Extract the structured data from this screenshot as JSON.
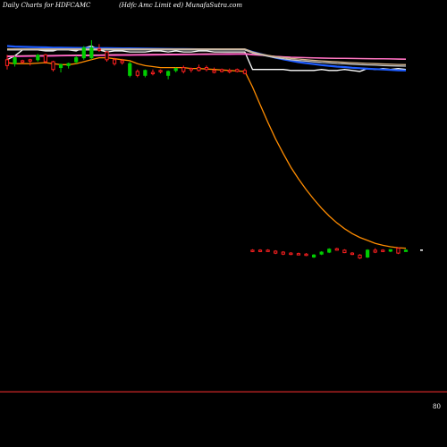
{
  "header": {
    "left": "Daily Charts for HDFCAMC",
    "right": "(Hdfc Amc Limit                         ed) MunafaSutra.com"
  },
  "colors": {
    "background": "#000000",
    "up": "#00cc00",
    "down": "#ff2020",
    "ema_short": "#ff8c00",
    "ma_blue": "#1e5cff",
    "ma_magenta": "#ff33cc",
    "ma_pink": "#ff7fbf",
    "ma_gray": "#c8c8c8",
    "ma_tan": "#d2b48c",
    "white_line": "#ffffff",
    "baseline": "#ff3030"
  },
  "chart_data": {
    "type": "candlestick",
    "ylim": [
      0,
      4000
    ],
    "baseline_price": 80,
    "price_label": "80",
    "candles": [
      {
        "o": 3480,
        "h": 3530,
        "l": 3380,
        "c": 3420,
        "dir": "down"
      },
      {
        "o": 3440,
        "h": 3520,
        "l": 3410,
        "c": 3500,
        "dir": "up"
      },
      {
        "o": 3470,
        "h": 3480,
        "l": 3440,
        "c": 3455,
        "dir": "down"
      },
      {
        "o": 3470,
        "h": 3490,
        "l": 3420,
        "c": 3480,
        "dir": "down"
      },
      {
        "o": 3480,
        "h": 3540,
        "l": 3460,
        "c": 3525,
        "dir": "up"
      },
      {
        "o": 3530,
        "h": 3540,
        "l": 3440,
        "c": 3460,
        "dir": "down"
      },
      {
        "o": 3460,
        "h": 3470,
        "l": 3360,
        "c": 3380,
        "dir": "down"
      },
      {
        "o": 3400,
        "h": 3440,
        "l": 3350,
        "c": 3430,
        "dir": "up"
      },
      {
        "o": 3420,
        "h": 3450,
        "l": 3390,
        "c": 3440,
        "dir": "up"
      },
      {
        "o": 3460,
        "h": 3520,
        "l": 3440,
        "c": 3500,
        "dir": "up"
      },
      {
        "o": 3500,
        "h": 3620,
        "l": 3480,
        "c": 3600,
        "dir": "up"
      },
      {
        "o": 3600,
        "h": 3680,
        "l": 3480,
        "c": 3500,
        "dir": "up"
      },
      {
        "o": 3580,
        "h": 3640,
        "l": 3560,
        "c": 3590,
        "dir": "down"
      },
      {
        "o": 3560,
        "h": 3570,
        "l": 3460,
        "c": 3480,
        "dir": "down"
      },
      {
        "o": 3480,
        "h": 3500,
        "l": 3420,
        "c": 3440,
        "dir": "down"
      },
      {
        "o": 3450,
        "h": 3490,
        "l": 3430,
        "c": 3470,
        "dir": "down"
      },
      {
        "o": 3440,
        "h": 3460,
        "l": 3300,
        "c": 3320,
        "dir": "up"
      },
      {
        "o": 3320,
        "h": 3380,
        "l": 3300,
        "c": 3360,
        "dir": "down"
      },
      {
        "o": 3320,
        "h": 3380,
        "l": 3300,
        "c": 3370,
        "dir": "up"
      },
      {
        "o": 3350,
        "h": 3380,
        "l": 3320,
        "c": 3340,
        "dir": "down"
      },
      {
        "o": 3360,
        "h": 3380,
        "l": 3340,
        "c": 3370,
        "dir": "down"
      },
      {
        "o": 3320,
        "h": 3370,
        "l": 3280,
        "c": 3360,
        "dir": "up"
      },
      {
        "o": 3370,
        "h": 3400,
        "l": 3350,
        "c": 3390,
        "dir": "up"
      },
      {
        "o": 3400,
        "h": 3420,
        "l": 3340,
        "c": 3360,
        "dir": "down"
      },
      {
        "o": 3380,
        "h": 3400,
        "l": 3350,
        "c": 3390,
        "dir": "down"
      },
      {
        "o": 3400,
        "h": 3430,
        "l": 3360,
        "c": 3370,
        "dir": "down"
      },
      {
        "o": 3400,
        "h": 3420,
        "l": 3360,
        "c": 3380,
        "dir": "down"
      },
      {
        "o": 3370,
        "h": 3400,
        "l": 3340,
        "c": 3350,
        "dir": "down"
      },
      {
        "o": 3380,
        "h": 3390,
        "l": 3350,
        "c": 3360,
        "dir": "down"
      },
      {
        "o": 3370,
        "h": 3390,
        "l": 3340,
        "c": 3360,
        "dir": "down"
      },
      {
        "o": 3380,
        "h": 3390,
        "l": 3350,
        "c": 3360,
        "dir": "down"
      },
      {
        "o": 3370,
        "h": 3390,
        "l": 3330,
        "c": 3340,
        "dir": "down"
      },
      {
        "o": 1530,
        "h": 1540,
        "l": 1510,
        "c": 1520,
        "dir": "down"
      },
      {
        "o": 1530,
        "h": 1540,
        "l": 1510,
        "c": 1525,
        "dir": "down"
      },
      {
        "o": 1530,
        "h": 1540,
        "l": 1515,
        "c": 1520,
        "dir": "down"
      },
      {
        "o": 1520,
        "h": 1530,
        "l": 1490,
        "c": 1500,
        "dir": "down"
      },
      {
        "o": 1510,
        "h": 1520,
        "l": 1480,
        "c": 1490,
        "dir": "down"
      },
      {
        "o": 1500,
        "h": 1510,
        "l": 1480,
        "c": 1490,
        "dir": "down"
      },
      {
        "o": 1495,
        "h": 1505,
        "l": 1480,
        "c": 1490,
        "dir": "down"
      },
      {
        "o": 1490,
        "h": 1500,
        "l": 1470,
        "c": 1480,
        "dir": "down"
      },
      {
        "o": 1460,
        "h": 1490,
        "l": 1450,
        "c": 1480,
        "dir": "up"
      },
      {
        "o": 1490,
        "h": 1520,
        "l": 1480,
        "c": 1510,
        "dir": "up"
      },
      {
        "o": 1510,
        "h": 1550,
        "l": 1500,
        "c": 1540,
        "dir": "up"
      },
      {
        "o": 1545,
        "h": 1555,
        "l": 1525,
        "c": 1530,
        "dir": "down"
      },
      {
        "o": 1530,
        "h": 1540,
        "l": 1500,
        "c": 1505,
        "dir": "down"
      },
      {
        "o": 1500,
        "h": 1510,
        "l": 1480,
        "c": 1490,
        "dir": "down"
      },
      {
        "o": 1480,
        "h": 1490,
        "l": 1440,
        "c": 1450,
        "dir": "down"
      },
      {
        "o": 1460,
        "h": 1540,
        "l": 1450,
        "c": 1530,
        "dir": "up"
      },
      {
        "o": 1530,
        "h": 1550,
        "l": 1500,
        "c": 1510,
        "dir": "down"
      },
      {
        "o": 1520,
        "h": 1540,
        "l": 1510,
        "c": 1530,
        "dir": "down"
      },
      {
        "o": 1520,
        "h": 1540,
        "l": 1510,
        "c": 1535,
        "dir": "up"
      },
      {
        "o": 1550,
        "h": 1560,
        "l": 1490,
        "c": 1500,
        "dir": "down"
      },
      {
        "o": 1530,
        "h": 1540,
        "l": 1520,
        "c": 1530,
        "dir": "up"
      }
    ],
    "series": [
      {
        "name": "",
        "color_key": "white_line",
        "values": [
          3480,
          3520,
          3580,
          3580,
          3580,
          3570,
          3570,
          3590,
          3580,
          3570,
          3600,
          3620,
          3580,
          3560,
          3570,
          3570,
          3560,
          3560,
          3560,
          3570,
          3570,
          3560,
          3570,
          3560,
          3560,
          3570,
          3570,
          3560,
          3560,
          3560,
          3560,
          3560,
          3380,
          3380,
          3380,
          3380,
          3380,
          3370,
          3370,
          3370,
          3370,
          3380,
          3370,
          3370,
          3380,
          3370,
          3360,
          3390,
          3380,
          3390,
          3380,
          3390,
          3380
        ]
      },
      {
        "name": "",
        "color_key": "ma_blue",
        "values": [
          3620,
          3615,
          3612,
          3610,
          3608,
          3606,
          3604,
          3603,
          3602,
          3601,
          3600,
          3600,
          3599,
          3598,
          3597,
          3596,
          3596,
          3595,
          3594,
          3593,
          3592,
          3591,
          3590,
          3589,
          3588,
          3587,
          3586,
          3586,
          3585,
          3585,
          3585,
          3585,
          3560,
          3540,
          3520,
          3500,
          3485,
          3470,
          3455,
          3445,
          3435,
          3425,
          3418,
          3410,
          3405,
          3398,
          3393,
          3388,
          3384,
          3380,
          3376,
          3372,
          3370
        ]
      },
      {
        "name": "",
        "color_key": "ma_magenta",
        "values": [
          3512,
          3513,
          3514,
          3515,
          3516,
          3517,
          3518,
          3519,
          3520,
          3521,
          3521,
          3522,
          3523,
          3524,
          3524,
          3525,
          3526,
          3527,
          3527,
          3528,
          3529,
          3530,
          3530,
          3531,
          3532,
          3533,
          3533,
          3534,
          3535,
          3535,
          3536,
          3537,
          3530,
          3525,
          3520,
          3515,
          3510,
          3507,
          3505,
          3502,
          3500,
          3498,
          3497,
          3496,
          3495,
          3494,
          3493,
          3492,
          3491,
          3490,
          3489,
          3488,
          3487
        ]
      },
      {
        "name": "",
        "color_key": "ma_pink",
        "values": [
          3518,
          3519,
          3520,
          3521,
          3522,
          3523,
          3524,
          3525,
          3526,
          3527,
          3528,
          3528,
          3529,
          3530,
          3531,
          3532,
          3532,
          3533,
          3534,
          3535,
          3535,
          3536,
          3537,
          3538,
          3538,
          3539,
          3540,
          3540,
          3541,
          3542,
          3542,
          3543,
          3535,
          3528,
          3520,
          3514,
          3509,
          3505,
          3502,
          3500,
          3498,
          3496,
          3495,
          3494,
          3493,
          3492,
          3491,
          3490,
          3489,
          3488,
          3487,
          3486,
          3485
        ]
      },
      {
        "name": "",
        "color_key": "ma_gray",
        "values": [
          3580,
          3580,
          3580,
          3580,
          3580,
          3580,
          3580,
          3580,
          3580,
          3580,
          3580,
          3580,
          3580,
          3580,
          3580,
          3580,
          3580,
          3580,
          3580,
          3580,
          3580,
          3580,
          3580,
          3580,
          3580,
          3580,
          3580,
          3580,
          3580,
          3580,
          3580,
          3580,
          3550,
          3530,
          3515,
          3500,
          3490,
          3480,
          3472,
          3465,
          3458,
          3452,
          3447,
          3442,
          3438,
          3434,
          3430,
          3427,
          3424,
          3421,
          3418,
          3416,
          3414
        ]
      },
      {
        "name": "",
        "color_key": "ma_tan",
        "values": [
          3590,
          3590,
          3590,
          3590,
          3590,
          3590,
          3590,
          3590,
          3590,
          3590,
          3590,
          3590,
          3590,
          3590,
          3590,
          3590,
          3590,
          3590,
          3590,
          3590,
          3590,
          3590,
          3590,
          3590,
          3590,
          3590,
          3590,
          3590,
          3590,
          3590,
          3590,
          3590,
          3560,
          3540,
          3525,
          3512,
          3502,
          3494,
          3487,
          3480,
          3474,
          3468,
          3463,
          3458,
          3454,
          3450,
          3446,
          3443,
          3440,
          3437,
          3434,
          3432,
          3430
        ]
      },
      {
        "name": "",
        "color_key": "ema_short",
        "values": [
          3450,
          3440,
          3440,
          3440,
          3445,
          3450,
          3440,
          3430,
          3430,
          3440,
          3460,
          3480,
          3500,
          3500,
          3490,
          3480,
          3470,
          3440,
          3420,
          3410,
          3400,
          3400,
          3400,
          3400,
          3390,
          3390,
          3385,
          3380,
          3375,
          3370,
          3365,
          3360,
          3200,
          3020,
          2840,
          2670,
          2520,
          2380,
          2260,
          2150,
          2050,
          1960,
          1880,
          1810,
          1750,
          1700,
          1660,
          1630,
          1600,
          1580,
          1565,
          1555,
          1550
        ]
      }
    ]
  }
}
